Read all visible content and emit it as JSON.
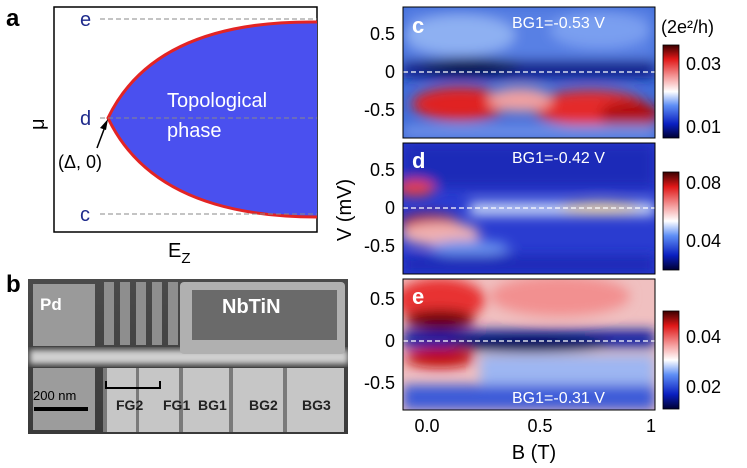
{
  "panels": {
    "a": "a",
    "b": "b",
    "c": "c",
    "d": "d",
    "e": "e"
  },
  "panel_a": {
    "level_e": "e",
    "level_d": "d",
    "level_c": "c",
    "phase_line1": "Topological",
    "phase_line2": "phase",
    "point_label": "(Δ, 0)",
    "y_axis_label": "μ",
    "x_axis_label_main": "E",
    "x_axis_label_sub": "Z"
  },
  "panel_b": {
    "pd": "Pd",
    "nbtin": "NbTiN",
    "scale_bar": "200 nm",
    "gates": [
      "FG2",
      "FG1",
      "BG1",
      "BG2",
      "BG3"
    ]
  },
  "maps": {
    "c_label": "BG1=-0.53 V",
    "d_label": "BG1=-0.42 V",
    "e_label": "BG1=-0.31 V",
    "y_axis_label": "V (mV)",
    "x_axis_label": "B (T)",
    "colorbar_unit": "(2e²/h)",
    "y_ticks": [
      "0.5",
      "0",
      "-0.5"
    ],
    "x_ticks": [
      "0.0",
      "0.5",
      "1"
    ],
    "cb_c": [
      "0.03",
      "0.01"
    ],
    "cb_d": [
      "0.08",
      "0.04"
    ],
    "cb_e": [
      "0.04",
      "0.02"
    ]
  },
  "colors": {
    "phase_fill": "#4a50ef",
    "phase_edge": "#e32424",
    "level_text": "#1f2b8c",
    "dashed": "#8a8a8a"
  }
}
